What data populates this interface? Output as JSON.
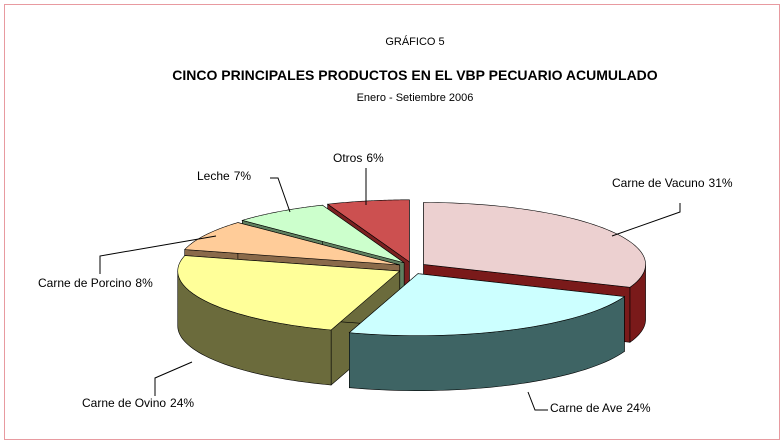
{
  "chart_data": {
    "type": "pie3d",
    "caption": "GRÁFICO 5",
    "title": "CINCO PRINCIPALES PRODUCTOS EN EL VBP PECUARIO ACUMULADO",
    "subtitle": "Enero - Setiembre 2006",
    "categories": [
      "Carne de Vacuno",
      "Carne de Ave",
      "Carne de Ovino",
      "Carne de Porcino",
      "Leche",
      "Otros"
    ],
    "values": [
      31,
      24,
      24,
      8,
      7,
      6
    ],
    "value_labels": [
      "31%",
      "24%",
      "24%",
      "8%",
      "7%",
      "6%"
    ],
    "colors": [
      "#ecd0d0",
      "#ccffff",
      "#ffff99",
      "#ffcc99",
      "#ccffcc",
      "#cc5050"
    ],
    "side_colors": [
      "#7a1a1a",
      "#3e6464",
      "#6b6b3c",
      "#8a6a4a",
      "#5f7f5f",
      "#7a2020"
    ]
  }
}
